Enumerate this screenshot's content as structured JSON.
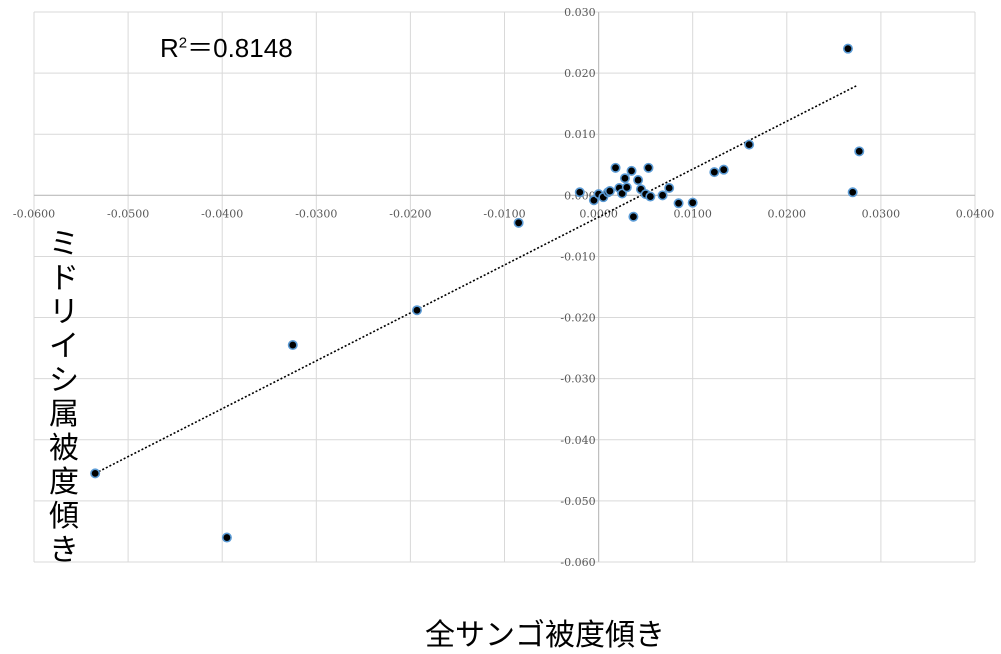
{
  "chart_data": {
    "type": "scatter",
    "title": "",
    "xlabel": "全サンゴ被度傾き",
    "ylabel": "ミドリイシ属被度傾き",
    "annotation": {
      "prefix": "R",
      "sup": "2",
      "text": "＝0.8148"
    },
    "xlim": [
      -0.06,
      0.04
    ],
    "ylim": [
      -0.06,
      0.03
    ],
    "x_ticks": [
      "-0.0600",
      "-0.0500",
      "-0.0400",
      "-0.0300",
      "-0.0200",
      "-0.0100",
      "0.0000",
      "0.0100",
      "0.0200",
      "0.0300",
      "0.0400"
    ],
    "y_ticks": [
      "0.030",
      "0.020",
      "0.010",
      "0.000",
      "-0.010",
      "-0.020",
      "-0.030",
      "-0.040",
      "-0.050",
      "-0.060"
    ],
    "grid": true,
    "trendline": {
      "style": "dotted",
      "from": [
        -0.0535,
        -0.0455
      ],
      "to": [
        0.0275,
        0.018
      ]
    },
    "points": [
      {
        "x": -0.0535,
        "y": -0.0455
      },
      {
        "x": -0.0395,
        "y": -0.056
      },
      {
        "x": -0.0325,
        "y": -0.0245
      },
      {
        "x": -0.0193,
        "y": -0.0188
      },
      {
        "x": -0.0085,
        "y": -0.0045
      },
      {
        "x": -0.002,
        "y": 0.0005
      },
      {
        "x": -0.0005,
        "y": -0.0008
      },
      {
        "x": 0.0,
        "y": 0.0002
      },
      {
        "x": 0.0005,
        "y": -0.0003
      },
      {
        "x": 0.001,
        "y": 0.0005
      },
      {
        "x": 0.0012,
        "y": 0.0007
      },
      {
        "x": 0.0018,
        "y": 0.0045
      },
      {
        "x": 0.0022,
        "y": 0.0012
      },
      {
        "x": 0.0025,
        "y": 0.0003
      },
      {
        "x": 0.0028,
        "y": 0.0028
      },
      {
        "x": 0.003,
        "y": 0.0013
      },
      {
        "x": 0.0035,
        "y": 0.004
      },
      {
        "x": 0.0037,
        "y": -0.0035
      },
      {
        "x": 0.0042,
        "y": 0.0025
      },
      {
        "x": 0.0045,
        "y": 0.001
      },
      {
        "x": 0.005,
        "y": 0.0002
      },
      {
        "x": 0.0053,
        "y": 0.0045
      },
      {
        "x": 0.0055,
        "y": -0.0002
      },
      {
        "x": 0.0068,
        "y": 0.0
      },
      {
        "x": 0.0075,
        "y": 0.0012
      },
      {
        "x": 0.0085,
        "y": -0.0013
      },
      {
        "x": 0.01,
        "y": -0.0012
      },
      {
        "x": 0.0123,
        "y": 0.0038
      },
      {
        "x": 0.0133,
        "y": 0.0042
      },
      {
        "x": 0.016,
        "y": 0.0083
      },
      {
        "x": 0.0265,
        "y": 0.024
      },
      {
        "x": 0.027,
        "y": 0.0005
      },
      {
        "x": 0.0277,
        "y": 0.0072
      }
    ],
    "colors": {
      "marker_fill": "#000000",
      "marker_stroke": "#5B9BD5",
      "grid": "#D9D9D9",
      "axis": "#BFBFBF",
      "trend": "#000000"
    }
  }
}
